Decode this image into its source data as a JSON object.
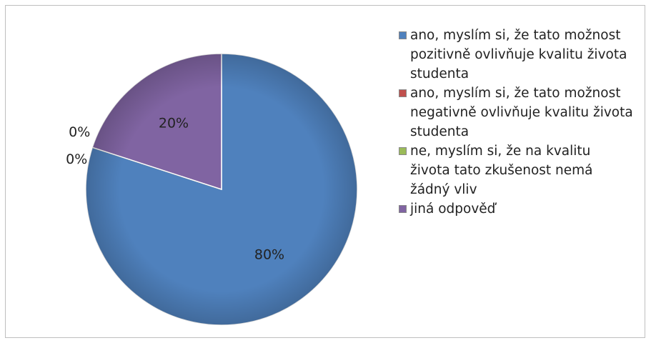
{
  "chart_data": {
    "type": "pie",
    "categories": [
      "ano, myslím si, že tato možnost pozitivně ovlivňuje kvalitu života studenta",
      "ano, myslím si, že tato možnost negativně ovlivňuje kvalitu života studenta",
      "ne, myslím si, že na kvalitu života tato zkušenost nemá žádný vliv",
      "jiná odpověď"
    ],
    "values": [
      80,
      0,
      0,
      20
    ],
    "value_labels": [
      "80%",
      "0%",
      "0%",
      "20%"
    ],
    "colors": [
      "#4f81bd",
      "#c0504d",
      "#9bbb59",
      "#8064a2"
    ],
    "legend": "right"
  }
}
